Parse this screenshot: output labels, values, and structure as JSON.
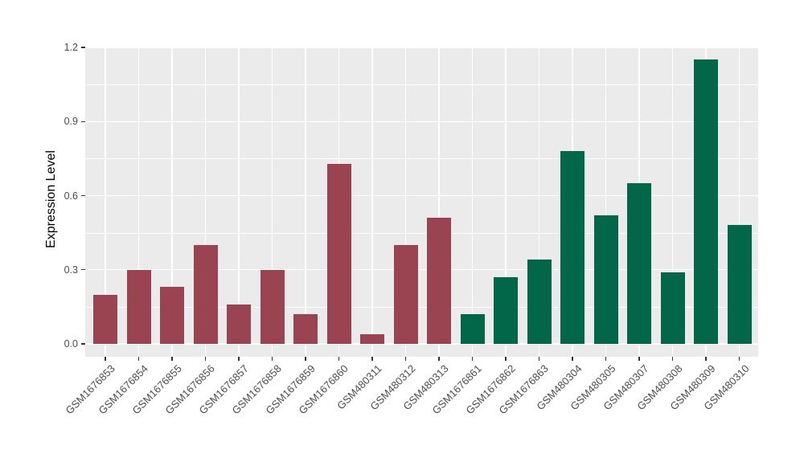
{
  "chart_data": {
    "type": "bar",
    "title": "",
    "xlabel": "",
    "ylabel": "Expression Level",
    "categories": [
      "GSM1676853",
      "GSM1676854",
      "GSM1676855",
      "GSM1676856",
      "GSM1676857",
      "GSM1676858",
      "GSM1676859",
      "GSM1676860",
      "GSM480311",
      "GSM480312",
      "GSM480313",
      "GSM1676861",
      "GSM1676862",
      "GSM1676863",
      "GSM480304",
      "GSM480305",
      "GSM480307",
      "GSM480308",
      "GSM480309",
      "GSM480310"
    ],
    "values": [
      0.2,
      0.3,
      0.23,
      0.4,
      0.16,
      0.3,
      0.12,
      0.73,
      0.04,
      0.4,
      0.51,
      0.12,
      0.27,
      0.34,
      0.78,
      0.52,
      0.65,
      0.29,
      1.15,
      0.48
    ],
    "bar_groups": [
      "g1",
      "g1",
      "g1",
      "g1",
      "g1",
      "g1",
      "g1",
      "g1",
      "g1",
      "g1",
      "g1",
      "g2",
      "g2",
      "g2",
      "g2",
      "g2",
      "g2",
      "g2",
      "g2",
      "g2"
    ],
    "group_colors": {
      "g1": "#9A4452",
      "g2": "#026648"
    },
    "ytick_labels": [
      "0.0",
      "0.3",
      "0.6",
      "0.9",
      "1.2"
    ],
    "yticks": [
      0.0,
      0.3,
      0.6,
      0.9,
      1.2
    ],
    "minor_yticks": [
      0.15,
      0.45,
      0.75,
      1.05
    ],
    "ylim": [
      0,
      1.2
    ],
    "grid": "on",
    "legend_position": "none",
    "panel_bg": "#EBEBEB",
    "grid_color": "#FFFFFF",
    "axis_text_color": "#4D4D4D",
    "tick_mark_color": "#333333"
  }
}
